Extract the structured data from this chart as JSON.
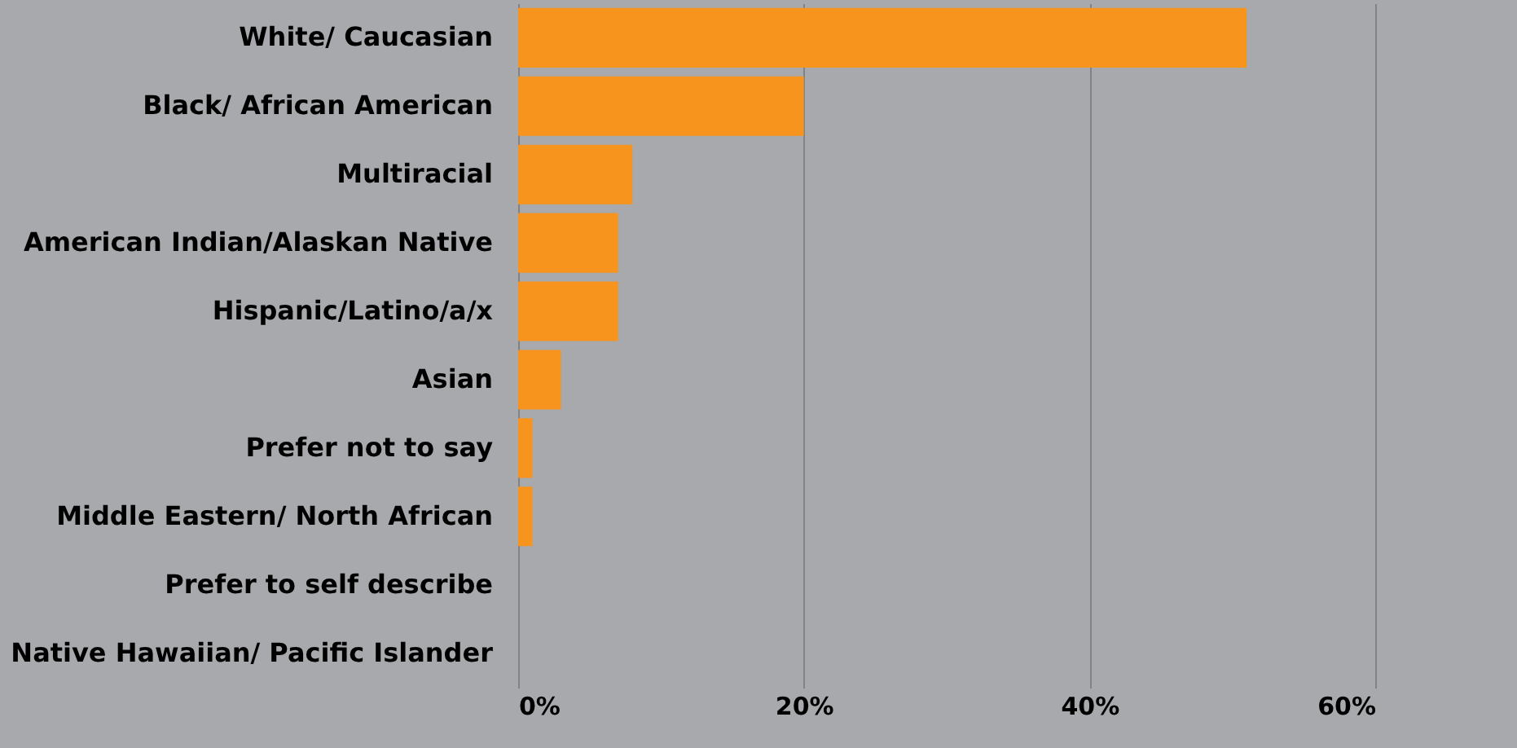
{
  "chart_data": {
    "type": "bar",
    "orientation": "horizontal",
    "categories": [
      "White/ Caucasian",
      "Black/ African American",
      "Multiracial",
      "American Indian/Alaskan Native",
      "Hispanic/Latino/a/x",
      "Asian",
      "Prefer not to say",
      "Middle Eastern/ North African",
      "Prefer to self describe",
      "Native Hawaiian/ Pacific Islander"
    ],
    "values": [
      51,
      20,
      8,
      7,
      7,
      3,
      1,
      1,
      0,
      0
    ],
    "color": "#f7941d",
    "xlim": [
      0,
      60
    ],
    "xticks": [
      {
        "value": 0,
        "label": "0%"
      },
      {
        "value": 20,
        "label": "20%"
      },
      {
        "value": 40,
        "label": "40%"
      },
      {
        "value": 60,
        "label": "60%"
      }
    ],
    "grid": "x"
  }
}
